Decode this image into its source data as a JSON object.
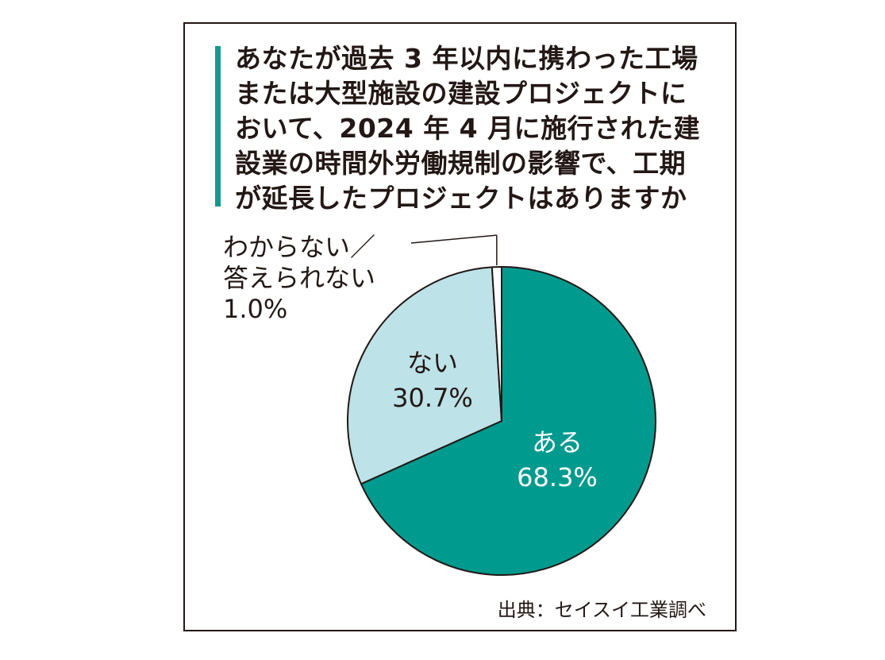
{
  "chart_data": {
    "type": "pie",
    "title_lines": [
      "あなたが過去 3 年以内に携わった工場",
      "または大型施設の建設プロジェクトに",
      "おいて、2024 年 4 月に施行された建",
      "設業の時間外労働規制の影響で、工期",
      "が延長したプロジェクトはありますか"
    ],
    "slices": [
      {
        "label": "ある",
        "value": 68.3,
        "value_text": "68.3%",
        "color": "#009a8f",
        "label_color": "#ffffff"
      },
      {
        "label": "ない",
        "value": 30.7,
        "value_text": "30.7%",
        "color": "#bde2e8",
        "label_color": "#231815"
      },
      {
        "label_lines": [
          "わからない／",
          "答えられない"
        ],
        "value": 1.0,
        "value_text": "1.0%",
        "color": "#ffffff",
        "label_color": "#231815",
        "outside": true
      }
    ],
    "start": "12 o'clock",
    "direction": "clockwise",
    "source": "出典：セイスイ工業調べ"
  }
}
